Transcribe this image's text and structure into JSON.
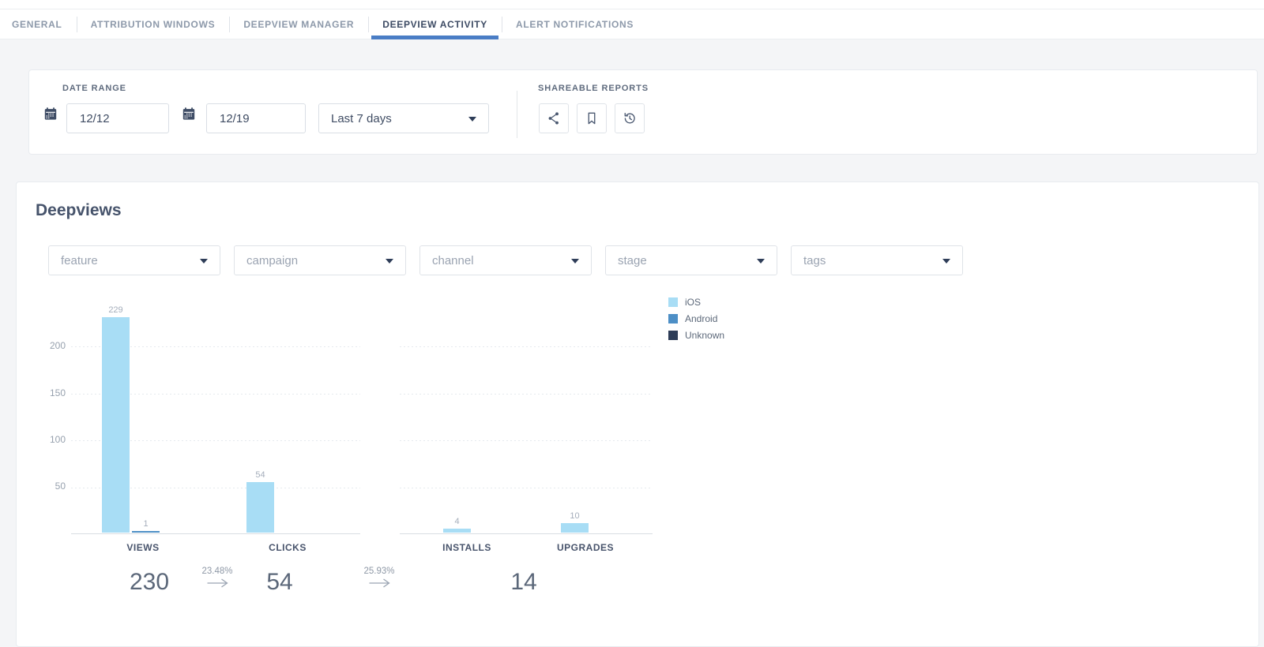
{
  "tabs": {
    "items": [
      {
        "label": "GENERAL",
        "active": false
      },
      {
        "label": "ATTRIBUTION WINDOWS",
        "active": false
      },
      {
        "label": "DEEPVIEW MANAGER",
        "active": false
      },
      {
        "label": "DEEPVIEW ACTIVITY",
        "active": true
      },
      {
        "label": "ALERT NOTIFICATIONS",
        "active": false
      }
    ]
  },
  "toolbar": {
    "date_range_label": "DATE RANGE",
    "start_date": "12/12",
    "end_date": "12/19",
    "preset": "Last 7 days",
    "shareable_reports_label": "SHAREABLE REPORTS",
    "icons": [
      "share-icon",
      "bookmark-icon",
      "history-icon"
    ]
  },
  "deepviews": {
    "title": "Deepviews",
    "filters": [
      {
        "placeholder": "feature"
      },
      {
        "placeholder": "campaign"
      },
      {
        "placeholder": "channel"
      },
      {
        "placeholder": "stage"
      },
      {
        "placeholder": "tags"
      }
    ]
  },
  "chart_data": {
    "type": "bar",
    "title": "Deepviews",
    "categories": [
      "VIEWS",
      "CLICKS",
      "INSTALLS",
      "UPGRADES"
    ],
    "series": [
      {
        "name": "iOS",
        "color": "#a8ddf5",
        "pattern": "solid",
        "values": [
          229,
          54,
          4,
          10
        ]
      },
      {
        "name": "Android",
        "color": "#4d8fc6",
        "pattern": "crosshatch",
        "values": [
          1,
          0,
          0,
          0
        ]
      },
      {
        "name": "Unknown",
        "color": "#2e3d58",
        "pattern": "crosshatch",
        "values": [
          0,
          0,
          0,
          0
        ]
      }
    ],
    "ylim": [
      0,
      240
    ],
    "yticks": [
      50,
      100,
      150,
      200
    ],
    "grid": "horizontal-dotted",
    "legend_position": "right",
    "value_labels": true
  },
  "funnel": {
    "views_total": "230",
    "views_to_clicks_rate": "23.48%",
    "clicks_total": "54",
    "clicks_to_installs_rate": "25.93%",
    "installs_upgrades_total": "14"
  },
  "colors": {
    "accent_blue": "#4a7dc5",
    "ios_bar": "#a8ddf5",
    "android": "#4d8fc6",
    "unknown": "#2e3d58"
  }
}
